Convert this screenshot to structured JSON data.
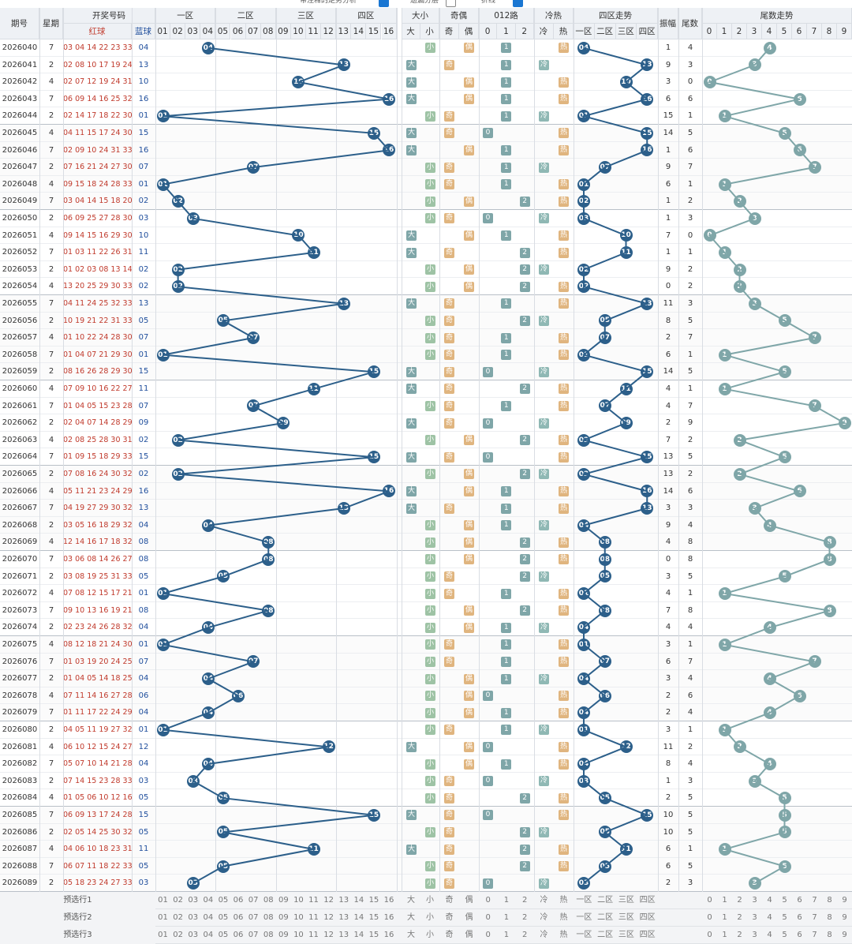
{
  "top_options": [
    {
      "label": "带注释的走势分析",
      "checked": true,
      "color": "#1976d2"
    },
    {
      "label": "遗漏分层",
      "checked": false,
      "color": "#ffffff"
    },
    {
      "label": "折线",
      "checked": true,
      "color": "#1976d2"
    }
  ],
  "headers": {
    "period": "期号",
    "weekday": "星期",
    "draw": "开奖号码",
    "red": "红球",
    "blue": "蓝球",
    "zone1": "一区",
    "zone2": "二区",
    "zone3": "三区",
    "zone4": "四区",
    "size": "大小",
    "oddeven": "奇偶",
    "route": "012路",
    "hotcold": "冷热",
    "zonetrend": "四区走势",
    "amplitude": "振幅",
    "tail": "尾数",
    "tailtrend": "尾数走势",
    "big": "大",
    "small": "小",
    "odd": "奇",
    "even": "偶",
    "cold": "冷",
    "hot": "热",
    "zone_names": [
      "一区",
      "二区",
      "三区",
      "四区"
    ],
    "blue_nums": [
      "01",
      "02",
      "03",
      "04",
      "05",
      "06",
      "07",
      "08",
      "09",
      "10",
      "11",
      "12",
      "13",
      "14",
      "15",
      "16"
    ],
    "route_nums": [
      "0",
      "1",
      "2"
    ],
    "tail_nums": [
      "0",
      "1",
      "2",
      "3",
      "4",
      "5",
      "6",
      "7",
      "8",
      "9"
    ]
  },
  "rows": [
    {
      "p": "2026040",
      "w": "7",
      "r": "03 04 14 22 23 33",
      "b": "04",
      "amp": "1",
      "tail": "4"
    },
    {
      "p": "2026041",
      "w": "2",
      "r": "02 08 10 17 19 24",
      "b": "13",
      "amp": "9",
      "tail": "3"
    },
    {
      "p": "2026042",
      "w": "4",
      "r": "02 07 12 19 24 31",
      "b": "10",
      "amp": "3",
      "tail": "0"
    },
    {
      "p": "2026043",
      "w": "7",
      "r": "06 09 14 16 25 32",
      "b": "16",
      "amp": "6",
      "tail": "6"
    },
    {
      "p": "2026044",
      "w": "2",
      "r": "02 14 17 18 22 30",
      "b": "01",
      "amp": "15",
      "tail": "1"
    },
    {
      "p": "2026045",
      "w": "4",
      "r": "04 11 15 17 24 30",
      "b": "15",
      "amp": "14",
      "tail": "5"
    },
    {
      "p": "2026046",
      "w": "7",
      "r": "02 09 10 24 31 33",
      "b": "16",
      "amp": "1",
      "tail": "6"
    },
    {
      "p": "2026047",
      "w": "2",
      "r": "07 16 21 24 27 30",
      "b": "07",
      "amp": "9",
      "tail": "7"
    },
    {
      "p": "2026048",
      "w": "4",
      "r": "09 15 18 24 28 33",
      "b": "01",
      "amp": "6",
      "tail": "1"
    },
    {
      "p": "2026049",
      "w": "7",
      "r": "03 04 14 15 18 20",
      "b": "02",
      "amp": "1",
      "tail": "2"
    },
    {
      "p": "2026050",
      "w": "2",
      "r": "06 09 25 27 28 30",
      "b": "03",
      "amp": "1",
      "tail": "3"
    },
    {
      "p": "2026051",
      "w": "4",
      "r": "09 14 15 16 29 30",
      "b": "10",
      "amp": "7",
      "tail": "0"
    },
    {
      "p": "2026052",
      "w": "7",
      "r": "01 03 11 22 26 31",
      "b": "11",
      "amp": "1",
      "tail": "1"
    },
    {
      "p": "2026053",
      "w": "2",
      "r": "01 02 03 08 13 14",
      "b": "02",
      "amp": "9",
      "tail": "2"
    },
    {
      "p": "2026054",
      "w": "4",
      "r": "13 20 25 29 30 33",
      "b": "02",
      "amp": "0",
      "tail": "2"
    },
    {
      "p": "2026055",
      "w": "7",
      "r": "04 11 24 25 32 33",
      "b": "13",
      "amp": "11",
      "tail": "3"
    },
    {
      "p": "2026056",
      "w": "2",
      "r": "10 19 21 22 31 33",
      "b": "05",
      "amp": "8",
      "tail": "5"
    },
    {
      "p": "2026057",
      "w": "4",
      "r": "01 10 22 24 28 30",
      "b": "07",
      "amp": "2",
      "tail": "7"
    },
    {
      "p": "2026058",
      "w": "7",
      "r": "01 04 07 21 29 30",
      "b": "01",
      "amp": "6",
      "tail": "1"
    },
    {
      "p": "2026059",
      "w": "2",
      "r": "08 16 26 28 29 30",
      "b": "15",
      "amp": "14",
      "tail": "5"
    },
    {
      "p": "2026060",
      "w": "4",
      "r": "07 09 10 16 22 27",
      "b": "11",
      "amp": "4",
      "tail": "1"
    },
    {
      "p": "2026061",
      "w": "7",
      "r": "01 04 05 15 23 28",
      "b": "07",
      "amp": "4",
      "tail": "7"
    },
    {
      "p": "2026062",
      "w": "2",
      "r": "02 04 07 14 28 29",
      "b": "09",
      "amp": "2",
      "tail": "9"
    },
    {
      "p": "2026063",
      "w": "4",
      "r": "02 08 25 28 30 31",
      "b": "02",
      "amp": "7",
      "tail": "2"
    },
    {
      "p": "2026064",
      "w": "7",
      "r": "01 09 15 18 29 33",
      "b": "15",
      "amp": "13",
      "tail": "5"
    },
    {
      "p": "2026065",
      "w": "2",
      "r": "07 08 16 24 30 32",
      "b": "02",
      "amp": "13",
      "tail": "2"
    },
    {
      "p": "2026066",
      "w": "4",
      "r": "05 11 21 23 24 29",
      "b": "16",
      "amp": "14",
      "tail": "6"
    },
    {
      "p": "2026067",
      "w": "7",
      "r": "04 19 27 29 30 32",
      "b": "13",
      "amp": "3",
      "tail": "3"
    },
    {
      "p": "2026068",
      "w": "2",
      "r": "03 05 16 18 29 32",
      "b": "04",
      "amp": "9",
      "tail": "4"
    },
    {
      "p": "2026069",
      "w": "4",
      "r": "12 14 16 17 18 32",
      "b": "08",
      "amp": "4",
      "tail": "8"
    },
    {
      "p": "2026070",
      "w": "7",
      "r": "03 06 08 14 26 27",
      "b": "08",
      "amp": "0",
      "tail": "8"
    },
    {
      "p": "2026071",
      "w": "2",
      "r": "03 08 19 25 31 33",
      "b": "05",
      "amp": "3",
      "tail": "5"
    },
    {
      "p": "2026072",
      "w": "4",
      "r": "07 08 12 15 17 21",
      "b": "01",
      "amp": "4",
      "tail": "1"
    },
    {
      "p": "2026073",
      "w": "7",
      "r": "09 10 13 16 19 21",
      "b": "08",
      "amp": "7",
      "tail": "8"
    },
    {
      "p": "2026074",
      "w": "2",
      "r": "02 23 24 26 28 32",
      "b": "04",
      "amp": "4",
      "tail": "4"
    },
    {
      "p": "2026075",
      "w": "4",
      "r": "08 12 18 21 24 30",
      "b": "01",
      "amp": "3",
      "tail": "1"
    },
    {
      "p": "2026076",
      "w": "7",
      "r": "01 03 19 20 24 25",
      "b": "07",
      "amp": "6",
      "tail": "7"
    },
    {
      "p": "2026077",
      "w": "2",
      "r": "01 04 05 14 18 25",
      "b": "04",
      "amp": "3",
      "tail": "4"
    },
    {
      "p": "2026078",
      "w": "4",
      "r": "07 11 14 16 27 28",
      "b": "06",
      "amp": "2",
      "tail": "6"
    },
    {
      "p": "2026079",
      "w": "7",
      "r": "01 11 17 22 24 29",
      "b": "04",
      "amp": "2",
      "tail": "4"
    },
    {
      "p": "2026080",
      "w": "2",
      "r": "04 05 11 19 27 32",
      "b": "01",
      "amp": "3",
      "tail": "1"
    },
    {
      "p": "2026081",
      "w": "4",
      "r": "06 10 12 15 24 27",
      "b": "12",
      "amp": "11",
      "tail": "2"
    },
    {
      "p": "2026082",
      "w": "7",
      "r": "05 07 10 14 21 28",
      "b": "04",
      "amp": "8",
      "tail": "4"
    },
    {
      "p": "2026083",
      "w": "2",
      "r": "07 14 15 23 28 33",
      "b": "03",
      "amp": "1",
      "tail": "3"
    },
    {
      "p": "2026084",
      "w": "4",
      "r": "01 05 06 10 12 16",
      "b": "05",
      "amp": "2",
      "tail": "5"
    },
    {
      "p": "2026085",
      "w": "7",
      "r": "06 09 13 17 24 28",
      "b": "15",
      "amp": "10",
      "tail": "5"
    },
    {
      "p": "2026086",
      "w": "2",
      "r": "02 05 14 25 30 32",
      "b": "05",
      "amp": "10",
      "tail": "5"
    },
    {
      "p": "2026087",
      "w": "4",
      "r": "04 06 10 18 23 31",
      "b": "11",
      "amp": "6",
      "tail": "1"
    },
    {
      "p": "2026088",
      "w": "7",
      "r": "06 07 11 18 22 33",
      "b": "05",
      "amp": "6",
      "tail": "5"
    },
    {
      "p": "2026089",
      "w": "2",
      "r": "05 18 23 24 27 33",
      "b": "03",
      "amp": "2",
      "tail": "3"
    }
  ],
  "preselect": [
    "预选行1",
    "预选行2",
    "预选行3"
  ],
  "colors": {
    "line_blue": "#2c5f8a",
    "line_green": "#7fa6a8",
    "big": "#7fa6a8",
    "small": "#9ec3a5",
    "odd": "#e0b57f",
    "even": "#e0b57f",
    "route": "#7fa6a8",
    "cold": "#8fb8b4",
    "hot": "#e0b57f"
  }
}
